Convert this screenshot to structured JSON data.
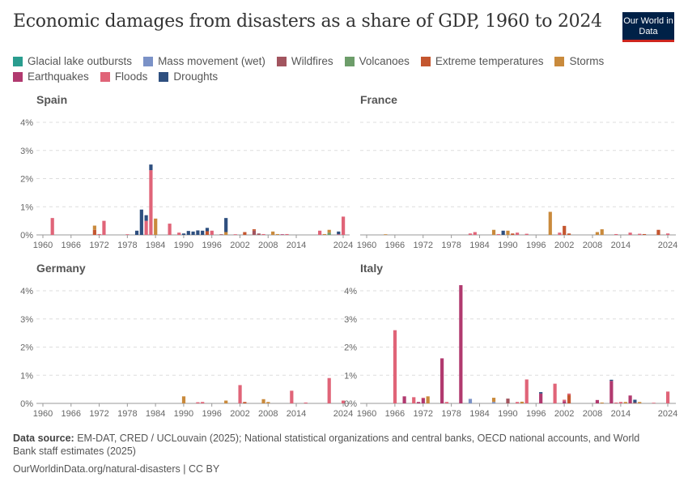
{
  "title": "Economic damages from disasters as a share of GDP, 1960 to 2024",
  "logo": "Our World in Data",
  "footer": {
    "source_label": "Data source:",
    "source": "EM-DAT, CRED / UCLouvain (2025); National statistical organizations and central banks, OECD national accounts, and World Bank staff estimates (2025)",
    "url": "OurWorldinData.org/natural-disasters | CC BY"
  },
  "chart_data": {
    "type": "bar",
    "stacked": true,
    "grid": true,
    "legend_position": "top",
    "ylim": [
      0,
      4
    ],
    "yticks": [
      "0%",
      "1%",
      "2%",
      "3%",
      "4%"
    ],
    "xticks": [
      "1960",
      "1966",
      "1972",
      "1978",
      "1984",
      "1990",
      "1996",
      "2002",
      "2008",
      "2014",
      "2024"
    ],
    "series": [
      {
        "name": "Glacial lake outbursts",
        "color": "#2a9d8f"
      },
      {
        "name": "Mass movement (wet)",
        "color": "#7b92c7"
      },
      {
        "name": "Wildfires",
        "color": "#a2555f"
      },
      {
        "name": "Volcanoes",
        "color": "#6d9d6a"
      },
      {
        "name": "Extreme temperatures",
        "color": "#c4562f"
      },
      {
        "name": "Storms",
        "color": "#c98a3c"
      },
      {
        "name": "Earthquakes",
        "color": "#b13a6f"
      },
      {
        "name": "Floods",
        "color": "#e06478"
      },
      {
        "name": "Droughts",
        "color": "#2e4f7f"
      }
    ],
    "panels": [
      {
        "name": "Spain",
        "bars": [
          {
            "year": 1962,
            "Floods": 0.6
          },
          {
            "year": 1971,
            "Extreme temperatures": 0.18,
            "Storms": 0.15
          },
          {
            "year": 1972,
            "Floods": 0.03
          },
          {
            "year": 1973,
            "Floods": 0.5
          },
          {
            "year": 1978,
            "Floods": 0.02
          },
          {
            "year": 1980,
            "Droughts": 0.15
          },
          {
            "year": 1981,
            "Droughts": 0.9
          },
          {
            "year": 1982,
            "Floods": 0.5,
            "Droughts": 0.2
          },
          {
            "year": 1983,
            "Floods": 2.3,
            "Droughts": 0.2
          },
          {
            "year": 1984,
            "Storms": 0.58
          },
          {
            "year": 1987,
            "Floods": 0.4
          },
          {
            "year": 1989,
            "Floods": 0.08
          },
          {
            "year": 1990,
            "Droughts": 0.05
          },
          {
            "year": 1991,
            "Droughts": 0.14
          },
          {
            "year": 1992,
            "Droughts": 0.12
          },
          {
            "year": 1993,
            "Droughts": 0.16
          },
          {
            "year": 1994,
            "Droughts": 0.15
          },
          {
            "year": 1995,
            "Extreme temperatures": 0.13,
            "Droughts": 0.12
          },
          {
            "year": 1996,
            "Floods": 0.15
          },
          {
            "year": 1998,
            "Wildfires": 0.01
          },
          {
            "year": 1999,
            "Storms": 0.1,
            "Droughts": 0.5
          },
          {
            "year": 2001,
            "Floods": 0.02
          },
          {
            "year": 2003,
            "Extreme temperatures": 0.1
          },
          {
            "year": 2005,
            "Wildfires": 0.15,
            "Extreme temperatures": 0.05
          },
          {
            "year": 2006,
            "Wildfires": 0.05
          },
          {
            "year": 2007,
            "Floods": 0.03
          },
          {
            "year": 2009,
            "Storms": 0.12
          },
          {
            "year": 2010,
            "Storms": 0.03
          },
          {
            "year": 2011,
            "Earthquakes": 0.01
          },
          {
            "year": 2012,
            "Floods": 0.03
          },
          {
            "year": 2019,
            "Floods": 0.15
          },
          {
            "year": 2020,
            "Storms": 0.03
          },
          {
            "year": 2021,
            "Volcanoes": 0.08,
            "Storms": 0.1
          },
          {
            "year": 2023,
            "Floods": 0.02,
            "Droughts": 0.1
          },
          {
            "year": 2024,
            "Floods": 0.65
          }
        ]
      },
      {
        "name": "France",
        "bars": [
          {
            "year": 1964,
            "Storms": 0.01
          },
          {
            "year": 1982,
            "Floods": 0.05
          },
          {
            "year": 1983,
            "Floods": 0.1
          },
          {
            "year": 1987,
            "Storms": 0.18
          },
          {
            "year": 1988,
            "Floods": 0.03
          },
          {
            "year": 1989,
            "Droughts": 0.15
          },
          {
            "year": 1990,
            "Storms": 0.15
          },
          {
            "year": 1991,
            "Extreme temperatures": 0.05
          },
          {
            "year": 1992,
            "Floods": 0.08
          },
          {
            "year": 1994,
            "Floods": 0.04
          },
          {
            "year": 1999,
            "Storms": 0.82
          },
          {
            "year": 2001,
            "Floods": 0.08
          },
          {
            "year": 2002,
            "Extreme temperatures": 0.32
          },
          {
            "year": 2003,
            "Extreme temperatures": 0.05
          },
          {
            "year": 2009,
            "Storms": 0.1
          },
          {
            "year": 2010,
            "Storms": 0.2
          },
          {
            "year": 2013,
            "Floods": 0.03
          },
          {
            "year": 2016,
            "Floods": 0.08
          },
          {
            "year": 2018,
            "Floods": 0.04
          },
          {
            "year": 2019,
            "Extreme temperatures": 0.03
          },
          {
            "year": 2022,
            "Extreme temperatures": 0.18
          },
          {
            "year": 2024,
            "Floods": 0.05
          }
        ]
      },
      {
        "name": "Germany",
        "bars": [
          {
            "year": 1990,
            "Storms": 0.25
          },
          {
            "year": 1993,
            "Floods": 0.04
          },
          {
            "year": 1994,
            "Floods": 0.05
          },
          {
            "year": 1999,
            "Storms": 0.1
          },
          {
            "year": 2002,
            "Floods": 0.65
          },
          {
            "year": 2003,
            "Extreme temperatures": 0.05
          },
          {
            "year": 2007,
            "Storms": 0.15
          },
          {
            "year": 2008,
            "Storms": 0.05
          },
          {
            "year": 2013,
            "Floods": 0.45
          },
          {
            "year": 2016,
            "Floods": 0.03
          },
          {
            "year": 2021,
            "Floods": 0.9
          },
          {
            "year": 2024,
            "Floods": 0.1
          }
        ]
      },
      {
        "name": "Italy",
        "bars": [
          {
            "year": 1966,
            "Floods": 2.6
          },
          {
            "year": 1968,
            "Earthquakes": 0.25
          },
          {
            "year": 1970,
            "Floods": 0.22
          },
          {
            "year": 1971,
            "Earthquakes": 0.05
          },
          {
            "year": 1972,
            "Earthquakes": 0.18,
            "Floods": 0.02
          },
          {
            "year": 1973,
            "Storms": 0.25
          },
          {
            "year": 1976,
            "Earthquakes": 1.6
          },
          {
            "year": 1977,
            "Floods": 0.05
          },
          {
            "year": 1980,
            "Earthquakes": 4.2
          },
          {
            "year": 1982,
            "Mass movement (wet)": 0.16
          },
          {
            "year": 1987,
            "Mass movement (wet)": 0.05,
            "Storms": 0.15
          },
          {
            "year": 1990,
            "Wildfires": 0.17
          },
          {
            "year": 1992,
            "Floods": 0.05
          },
          {
            "year": 1993,
            "Storms": 0.06
          },
          {
            "year": 1994,
            "Floods": 0.85
          },
          {
            "year": 1997,
            "Earthquakes": 0.35,
            "Droughts": 0.05
          },
          {
            "year": 2000,
            "Floods": 0.7
          },
          {
            "year": 2002,
            "Earthquakes": 0.08,
            "Floods": 0.05
          },
          {
            "year": 2003,
            "Extreme temperatures": 0.3,
            "Floods": 0.05
          },
          {
            "year": 2009,
            "Earthquakes": 0.12
          },
          {
            "year": 2010,
            "Storms": 0.03
          },
          {
            "year": 2012,
            "Earthquakes": 0.8,
            "Droughts": 0.04
          },
          {
            "year": 2013,
            "Floods": 0.03
          },
          {
            "year": 2014,
            "Floods": 0.05
          },
          {
            "year": 2015,
            "Storms": 0.05
          },
          {
            "year": 2016,
            "Earthquakes": 0.28
          },
          {
            "year": 2017,
            "Wildfires": 0.03,
            "Droughts": 0.1
          },
          {
            "year": 2018,
            "Storms": 0.05
          },
          {
            "year": 2021,
            "Floods": 0.02
          },
          {
            "year": 2024,
            "Floods": 0.42
          }
        ]
      }
    ]
  }
}
